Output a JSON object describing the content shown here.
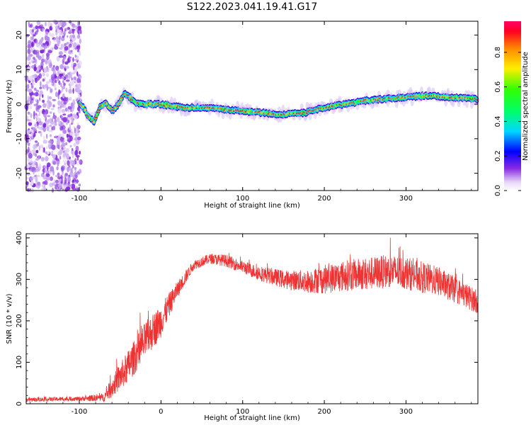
{
  "title": "S122.2023.041.19.41.G17",
  "chart_data": [
    {
      "type": "heatmap",
      "xlabel": "Height of straight line (km)",
      "ylabel": "Frequency (Hz)",
      "xlim": [
        -165,
        388
      ],
      "ylim": [
        -25,
        24
      ],
      "xticks": [
        -100,
        0,
        100,
        200,
        300
      ],
      "xtick_labels": [
        "-100",
        "0",
        "100",
        "200",
        "300"
      ],
      "yticks": [
        -20,
        -10,
        0,
        10,
        20
      ],
      "ytick_labels": [
        "-20",
        "-10",
        "0",
        "10",
        "20"
      ],
      "colorbar": {
        "label": "Normalized spectral amplitude",
        "ticks": [
          0.0,
          0.2,
          0.4,
          0.6,
          0.8
        ],
        "tick_labels": [
          "0.0",
          "0.2",
          "0.4",
          "0.6",
          "0.8"
        ],
        "range": [
          0,
          0.98
        ]
      },
      "ridge": {
        "x": [
          -100,
          -95,
          -88,
          -82,
          -75,
          -68,
          -60,
          -52,
          -45,
          -38,
          -32,
          -25,
          0,
          25,
          50,
          75,
          100,
          125,
          150,
          175,
          200,
          225,
          250,
          275,
          300,
          325,
          350,
          388
        ],
        "y": [
          0,
          -1,
          -4,
          -5,
          -1,
          0.5,
          -2,
          0,
          3,
          2,
          0.5,
          0,
          0,
          -1,
          -1,
          -1.5,
          -2,
          -2.5,
          -3,
          -2.5,
          -1,
          0,
          1,
          1.5,
          2,
          2.5,
          2,
          1.5
        ]
      },
      "noise_region_x": [
        -165,
        -100
      ]
    },
    {
      "type": "line",
      "xlabel": "Height of straight line (km)",
      "ylabel": "SNR (10 * v/v)",
      "xlim": [
        -165,
        388
      ],
      "ylim": [
        0,
        410
      ],
      "xticks": [
        -100,
        0,
        100,
        200,
        300
      ],
      "xtick_labels": [
        "-100",
        "0",
        "100",
        "200",
        "300"
      ],
      "yticks": [
        0,
        100,
        200,
        300,
        400
      ],
      "ytick_labels": [
        "0",
        "100",
        "200",
        "300",
        "400"
      ],
      "color": "#ee3333",
      "envelope": {
        "x": [
          -165,
          -100,
          -70,
          -60,
          -40,
          -20,
          0,
          20,
          40,
          60,
          80,
          100,
          120,
          150,
          180,
          200,
          230,
          260,
          280,
          300,
          320,
          340,
          360,
          388
        ],
        "y": [
          10,
          12,
          15,
          40,
          90,
          150,
          200,
          275,
          335,
          350,
          345,
          330,
          315,
          300,
          295,
          300,
          310,
          315,
          320,
          315,
          305,
          295,
          275,
          245
        ],
        "noise_amplitude": [
          5,
          5,
          10,
          25,
          40,
          45,
          40,
          20,
          12,
          12,
          15,
          15,
          18,
          22,
          28,
          35,
          38,
          40,
          40,
          40,
          38,
          35,
          32,
          28
        ]
      }
    }
  ]
}
